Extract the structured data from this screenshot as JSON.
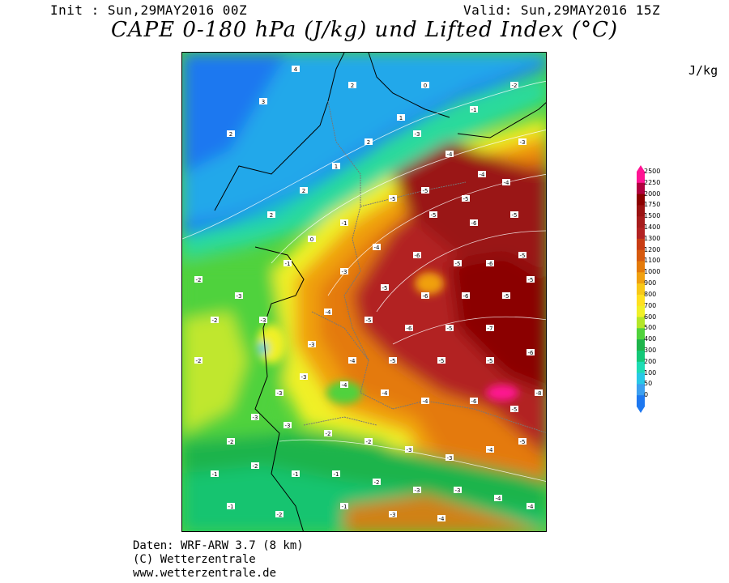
{
  "header": {
    "init": "Init : Sun,29MAY2016 00Z",
    "valid": "Valid: Sun,29MAY2016 15Z",
    "title": "CAPE 0-180 hPa (J/kg) und Lifted Index (°C)",
    "unit": "J/kg"
  },
  "legend": {
    "labels": [
      "2500",
      "2250",
      "2000",
      "1750",
      "1500",
      "1400",
      "1300",
      "1200",
      "1100",
      "1000",
      "900",
      "800",
      "700",
      "600",
      "500",
      "400",
      "300",
      "200",
      "100",
      "50",
      "0"
    ],
    "colors": [
      "#ff1493",
      "#b0003f",
      "#8b0000",
      "#9a1212",
      "#a61c1c",
      "#b22222",
      "#c83c14",
      "#d65a0f",
      "#e47a0a",
      "#f0a010",
      "#f8c818",
      "#ffe020",
      "#f0f028",
      "#b4e628",
      "#50d23c",
      "#1eb44b",
      "#14c878",
      "#1edcb4",
      "#28c8e6",
      "#3ca0f0",
      "#1e78f0"
    ]
  },
  "map": {
    "title_hidden": "",
    "li_labels": [
      "-4",
      "-5",
      "-6",
      "-3",
      "-2",
      "-1",
      "0",
      "1",
      "2",
      "-7",
      "-8"
    ]
  },
  "footer": {
    "line1": "Daten: WRF-ARW 3.7 (8 km)",
    "line2": "(C) Wetterzentrale",
    "line3": "www.wetterzentrale.de"
  }
}
